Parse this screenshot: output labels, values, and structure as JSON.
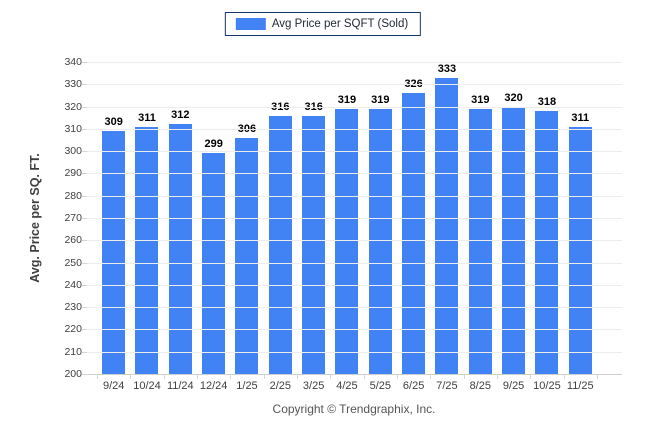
{
  "legend": {
    "label": "Avg Price per SQFT (Sold)"
  },
  "footer": {
    "copyright": "Copyright © Trendgraphix, Inc."
  },
  "colors": {
    "bar": "#4182f5",
    "legend_border": "#17375e",
    "gridline": "#ececec",
    "axis_text": "#3f3f3f"
  },
  "chart_data": {
    "type": "bar",
    "title": "Avg Price per SQFT (Sold)",
    "categories": [
      "9/24",
      "10/24",
      "11/24",
      "12/24",
      "1/25",
      "2/25",
      "3/25",
      "4/25",
      "5/25",
      "6/25",
      "7/25",
      "8/25",
      "9/25",
      "10/25",
      "11/25"
    ],
    "values": [
      309,
      311,
      312,
      299,
      306,
      316,
      316,
      319,
      319,
      326,
      333,
      319,
      320,
      318,
      311
    ],
    "xlabel": "",
    "ylabel": "Avg. Price per SQ. FT.",
    "ylim": [
      200,
      340
    ],
    "ytick_step": 10,
    "grid": true,
    "legend_position": "top-center",
    "value_labels": true,
    "bar_color": "#4182f5"
  }
}
